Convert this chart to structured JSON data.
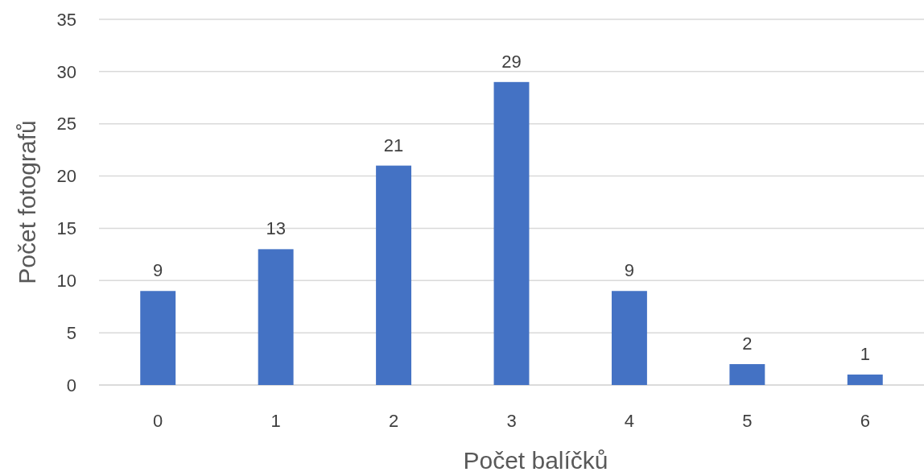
{
  "chart_data": {
    "type": "bar",
    "xlabel": "Počet balíčků",
    "ylabel": "Počet fotografů",
    "categories": [
      "0",
      "1",
      "2",
      "3",
      "4",
      "5",
      "6"
    ],
    "values": [
      9,
      13,
      21,
      29,
      9,
      2,
      1
    ],
    "color": "#4472c4",
    "ylim": [
      0,
      35
    ],
    "yticks": [
      0,
      5,
      10,
      15,
      20,
      25,
      30,
      35
    ],
    "grid": "y",
    "data_labels": true
  }
}
